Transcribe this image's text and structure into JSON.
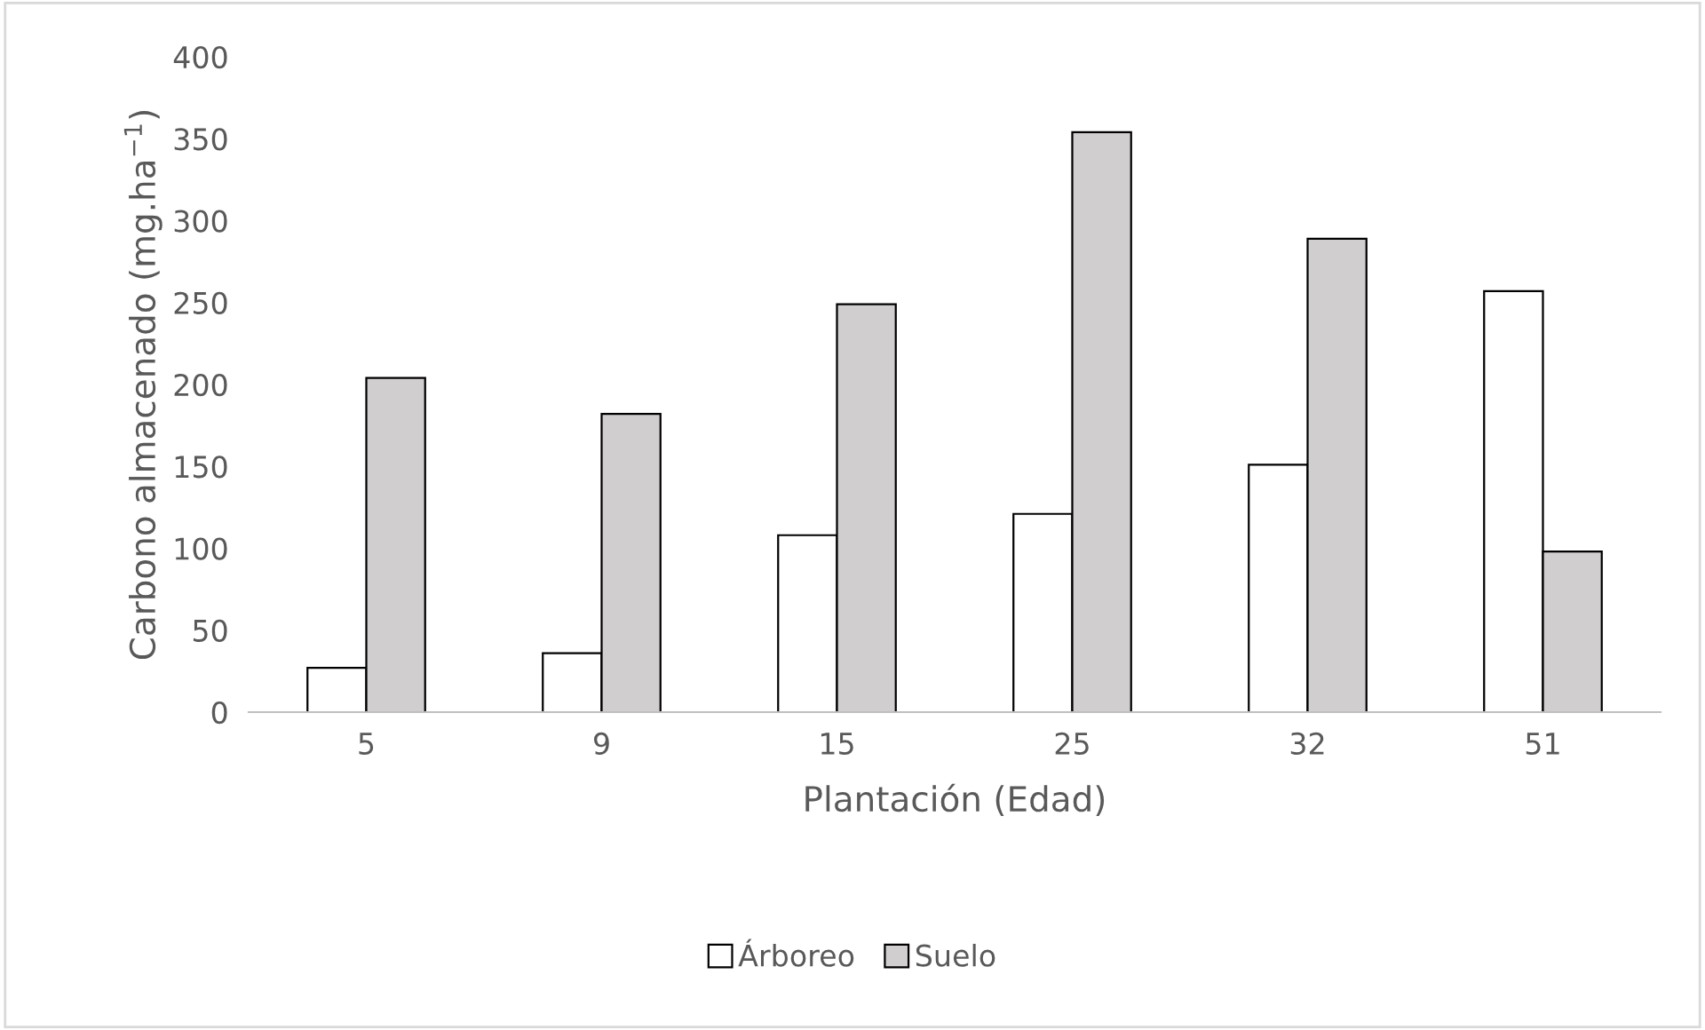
{
  "chart_data": {
    "type": "bar",
    "xlabel": "Plantación (Edad)",
    "ylabel": "Carbono almacenado (mg.ha$^{−1}$)",
    "categories": [
      "5",
      "9",
      "15",
      "25",
      "32",
      "51"
    ],
    "series": [
      {
        "name": "Árboreo",
        "color": "#ffffff",
        "values": [
          27,
          36,
          108,
          121,
          151,
          257
        ]
      },
      {
        "name": "Suelo",
        "color": "#d0cece",
        "values": [
          204,
          182,
          249,
          354,
          289,
          98
        ]
      }
    ],
    "ylim": [
      0,
      400
    ],
    "yticks": [
      0,
      50,
      100,
      150,
      200,
      250,
      300,
      350,
      400
    ],
    "grid": false,
    "legend": "bottom"
  }
}
